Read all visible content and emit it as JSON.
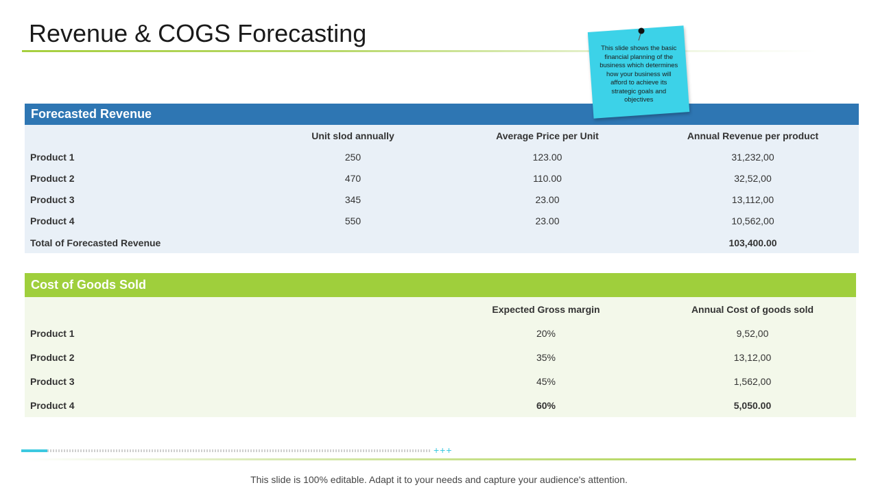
{
  "title": "Revenue & COGS Forecasting",
  "note": {
    "text": "This slide shows the basic financial planning of the business which determines how your business will afford to achieve its strategic goals and objectives",
    "color": "#3cd2e8"
  },
  "revenue": {
    "heading": "Forecasted Revenue",
    "columns": [
      "",
      "Unit slod annually",
      "Average Price per Unit",
      "Annual  Revenue per product"
    ],
    "rows": [
      [
        "Product 1",
        "250",
        "123.00",
        "31,232,00"
      ],
      [
        "Product 2",
        "470",
        "110.00",
        "32,52,00"
      ],
      [
        "Product 3",
        "345",
        "23.00",
        "13,112,00"
      ],
      [
        "Product 4",
        "550",
        "23.00",
        "10,562,00"
      ]
    ],
    "total_label": "Total of Forecasted Revenue",
    "total_value": "103,400.00",
    "header_color": "#2e76b3"
  },
  "cogs": {
    "heading": "Cost of Goods Sold",
    "columns": [
      "Expected Gross margin",
      "Annual  Cost of goods sold"
    ],
    "rows": [
      [
        "Product 1",
        "20%",
        "9,52,00"
      ],
      [
        "Product 2",
        "35%",
        "13,12,00"
      ],
      [
        "Product 3",
        "45%",
        "1,562,00"
      ],
      [
        "Product 4",
        "60%",
        "5,050.00"
      ]
    ],
    "header_color": "#9fcf3c"
  },
  "footer": {
    "plus_marks": "+++",
    "text": "This slide is 100% editable. Adapt it to your needs and capture your audience's attention."
  }
}
